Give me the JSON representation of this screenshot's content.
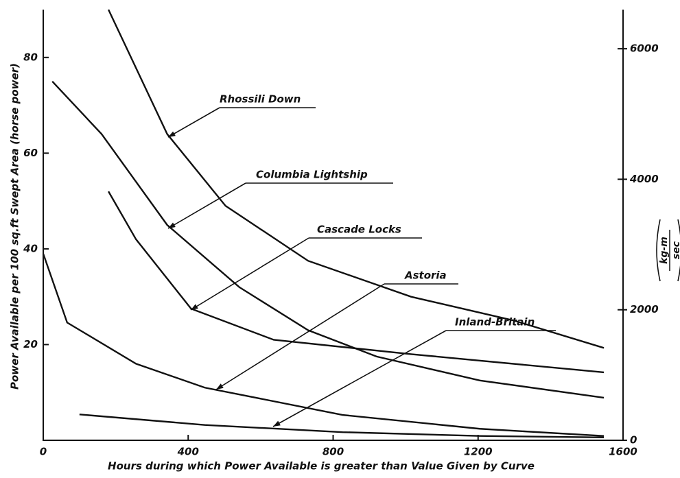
{
  "chart_data": {
    "type": "line",
    "ylabel": "Power Available per 100 sq.ft Swept Area (horse power)",
    "xlabel": "Hours during which Power Available is greater than Value Given by Curve",
    "y2label_numerator": "kg-m",
    "y2label_denominator": "sec",
    "xlim": [
      0,
      1600
    ],
    "xticks": [
      0,
      400,
      800,
      1200,
      1600
    ],
    "ylim": [
      0,
      90
    ],
    "yticks": [
      20,
      40,
      60,
      80
    ],
    "y2lim": [
      0,
      6600
    ],
    "y2ticks": [
      0,
      2000,
      4000,
      6000
    ],
    "series": [
      {
        "name": "Rhossili Down",
        "color": "#111111",
        "x": [
          180,
          342,
          503,
          731,
          1015,
          1300,
          1547
        ],
        "values": [
          90,
          64,
          49,
          37.5,
          30,
          25,
          19.3
        ]
      },
      {
        "name": "Columbia Lightship",
        "color": "#111111",
        "x": [
          25,
          161,
          342,
          541,
          731,
          920,
          1205,
          1547
        ],
        "values": [
          75,
          64,
          45,
          32,
          23,
          17.5,
          12.5,
          8.9
        ]
      },
      {
        "name": "Cascade Locks",
        "color": "#111111",
        "x": [
          180,
          256,
          408,
          636,
          1015,
          1547
        ],
        "values": [
          52,
          42,
          27.5,
          21,
          18,
          14.2
        ]
      },
      {
        "name": "Astoria",
        "color": "#111111",
        "x": [
          0,
          66,
          256,
          446,
          826,
          1205,
          1547
        ],
        "values": [
          39,
          24.6,
          16,
          11,
          5.3,
          2.4,
          0.9
        ]
      },
      {
        "name": "Inland-Britain",
        "color": "#111111",
        "x": [
          100,
          446,
          826,
          1205,
          1547
        ],
        "values": [
          5.4,
          3.2,
          1.7,
          0.9,
          0.6
        ]
      }
    ]
  }
}
